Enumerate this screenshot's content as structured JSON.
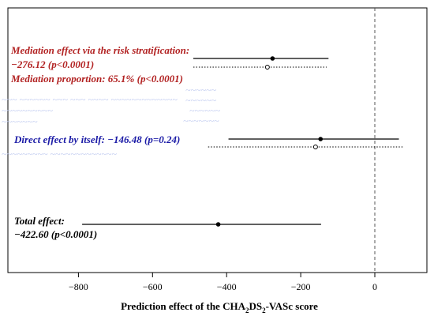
{
  "chart_data": {
    "type": "forest",
    "xlabel": "Prediction effect of the CHA2DS2-VASc score",
    "xlabel_parts": {
      "prefix": "Prediction effect of the CHA",
      "sub1": "2",
      "mid": "DS",
      "sub2": "2",
      "suffix": "-VASc score"
    },
    "xlim": [
      -1000,
      60
    ],
    "xticks": [
      -800,
      -600,
      -400,
      -200,
      0
    ],
    "xtick_labels": [
      "−800",
      "−600",
      "−400",
      "−200",
      "0"
    ],
    "reference_line": 0,
    "rows": [
      {
        "label_lines": [
          "Mediation effect via the risk stratification:",
          "−276.12 (p<0.0001)",
          "Mediation proportion: 65.1% (p<0.0001)"
        ],
        "color": "#b22222",
        "estimate": -276.12,
        "ci": [
          -490,
          -125
        ],
        "secondary": {
          "estimate": -290,
          "ci": [
            -490,
            -130
          ]
        }
      },
      {
        "label_lines": [
          "Direct effect by itself: −146.48 (p=0.24)"
        ],
        "color": "#1a1aa6",
        "estimate": -146.48,
        "ci": [
          -395,
          65
        ],
        "secondary": {
          "estimate": -160,
          "ci": [
            -450,
            75
          ]
        }
      },
      {
        "label_lines": [
          "Total effect:",
          "−422.60 (p<0.0001)"
        ],
        "color": "#000000",
        "estimate": -422.6,
        "ci": [
          -790,
          -145
        ]
      }
    ]
  }
}
